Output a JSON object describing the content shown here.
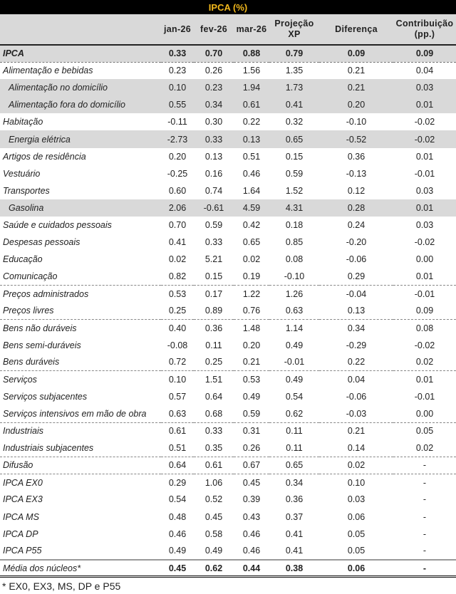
{
  "title": "IPCA (%)",
  "columns": [
    "",
    "jan-26",
    "fev-26",
    "mar-26",
    "Projeção XP",
    "Diferença",
    "Contribuição (pp.)"
  ],
  "header_lines": {
    "projecao_1": "Projeção",
    "projecao_2": "XP",
    "contrib_1": "Contribuição",
    "contrib_2": "(pp.)"
  },
  "rows": [
    {
      "label": "IPCA",
      "values": [
        "0.33",
        "0.70",
        "0.88",
        "0.79",
        "0.09",
        "0.09"
      ],
      "style": "ipca bold"
    },
    {
      "label": "Alimentação e bebidas",
      "values": [
        "0.23",
        "0.26",
        "1.56",
        "1.35",
        "0.21",
        "0.04"
      ],
      "style": ""
    },
    {
      "label": "Alimentação no domicílio",
      "values": [
        "0.10",
        "0.23",
        "1.94",
        "1.73",
        "0.21",
        "0.03"
      ],
      "style": "sub shade"
    },
    {
      "label": "Alimentação fora do domicílio",
      "values": [
        "0.55",
        "0.34",
        "0.61",
        "0.41",
        "0.20",
        "0.01"
      ],
      "style": "sub shade"
    },
    {
      "label": "Habitação",
      "values": [
        "-0.11",
        "0.30",
        "0.22",
        "0.32",
        "-0.10",
        "-0.02"
      ],
      "style": ""
    },
    {
      "label": "Energia elétrica",
      "values": [
        "-2.73",
        "0.33",
        "0.13",
        "0.65",
        "-0.52",
        "-0.02"
      ],
      "style": "sub shade"
    },
    {
      "label": "Artigos de residência",
      "values": [
        "0.20",
        "0.13",
        "0.51",
        "0.15",
        "0.36",
        "0.01"
      ],
      "style": ""
    },
    {
      "label": "Vestuário",
      "values": [
        "-0.25",
        "0.16",
        "0.46",
        "0.59",
        "-0.13",
        "-0.01"
      ],
      "style": ""
    },
    {
      "label": "Transportes",
      "values": [
        "0.60",
        "0.74",
        "1.64",
        "1.52",
        "0.12",
        "0.03"
      ],
      "style": ""
    },
    {
      "label": "Gasolina",
      "values": [
        "2.06",
        "-0.61",
        "4.59",
        "4.31",
        "0.28",
        "0.01"
      ],
      "style": "sub shade"
    },
    {
      "label": "Saúde e cuidados pessoais",
      "values": [
        "0.70",
        "0.59",
        "0.42",
        "0.18",
        "0.24",
        "0.03"
      ],
      "style": ""
    },
    {
      "label": "Despesas pessoais",
      "values": [
        "0.41",
        "0.33",
        "0.65",
        "0.85",
        "-0.20",
        "-0.02"
      ],
      "style": ""
    },
    {
      "label": "Educação",
      "values": [
        "0.02",
        "5.21",
        "0.02",
        "0.08",
        "-0.06",
        "0.00"
      ],
      "style": ""
    },
    {
      "label": "Comunicação",
      "values": [
        "0.82",
        "0.15",
        "0.19",
        "-0.10",
        "0.29",
        "0.01"
      ],
      "style": "sep"
    },
    {
      "label": "Preços administrados",
      "values": [
        "0.53",
        "0.17",
        "1.22",
        "1.26",
        "-0.04",
        "-0.01"
      ],
      "style": ""
    },
    {
      "label": "Preços livres",
      "values": [
        "0.25",
        "0.89",
        "0.76",
        "0.63",
        "0.13",
        "0.09"
      ],
      "style": "sep"
    },
    {
      "label": "Bens não duráveis",
      "values": [
        "0.40",
        "0.36",
        "1.48",
        "1.14",
        "0.34",
        "0.08"
      ],
      "style": ""
    },
    {
      "label": "Bens semi-duráveis",
      "values": [
        "-0.08",
        "0.11",
        "0.20",
        "0.49",
        "-0.29",
        "-0.02"
      ],
      "style": ""
    },
    {
      "label": "Bens duráveis",
      "values": [
        "0.72",
        "0.25",
        "0.21",
        "-0.01",
        "0.22",
        "0.02"
      ],
      "style": "sep"
    },
    {
      "label": "Serviços",
      "values": [
        "0.10",
        "1.51",
        "0.53",
        "0.49",
        "0.04",
        "0.01"
      ],
      "style": ""
    },
    {
      "label": "Serviços subjacentes",
      "values": [
        "0.57",
        "0.64",
        "0.49",
        "0.54",
        "-0.06",
        "-0.01"
      ],
      "style": ""
    },
    {
      "label": "Serviços intensivos em mão de obra",
      "values": [
        "0.63",
        "0.68",
        "0.59",
        "0.62",
        "-0.03",
        "0.00"
      ],
      "style": "sep"
    },
    {
      "label": "Industriais",
      "values": [
        "0.61",
        "0.33",
        "0.31",
        "0.11",
        "0.21",
        "0.05"
      ],
      "style": ""
    },
    {
      "label": "Industriais subjacentes",
      "values": [
        "0.51",
        "0.35",
        "0.26",
        "0.11",
        "0.14",
        "0.02"
      ],
      "style": "sep"
    },
    {
      "label": "Difusão",
      "values": [
        "0.64",
        "0.61",
        "0.67",
        "0.65",
        "0.02",
        "-"
      ],
      "style": "sep"
    },
    {
      "label": "IPCA EX0",
      "values": [
        "0.29",
        "1.06",
        "0.45",
        "0.34",
        "0.10",
        "-"
      ],
      "style": ""
    },
    {
      "label": "IPCA EX3",
      "values": [
        "0.54",
        "0.52",
        "0.39",
        "0.36",
        "0.03",
        "-"
      ],
      "style": ""
    },
    {
      "label": "IPCA MS",
      "values": [
        "0.48",
        "0.45",
        "0.43",
        "0.37",
        "0.06",
        "-"
      ],
      "style": ""
    },
    {
      "label": "IPCA DP",
      "values": [
        "0.46",
        "0.58",
        "0.46",
        "0.41",
        "0.05",
        "-"
      ],
      "style": ""
    },
    {
      "label": "IPCA P55",
      "values": [
        "0.49",
        "0.49",
        "0.46",
        "0.41",
        "0.05",
        "-"
      ],
      "style": "pre-total"
    },
    {
      "label": "Média dos núcleos*",
      "values": [
        "0.45",
        "0.62",
        "0.44",
        "0.38",
        "0.06",
        "-"
      ],
      "style": "total bold"
    }
  ],
  "footnote": "* EX0, EX3, MS, DP e P55"
}
